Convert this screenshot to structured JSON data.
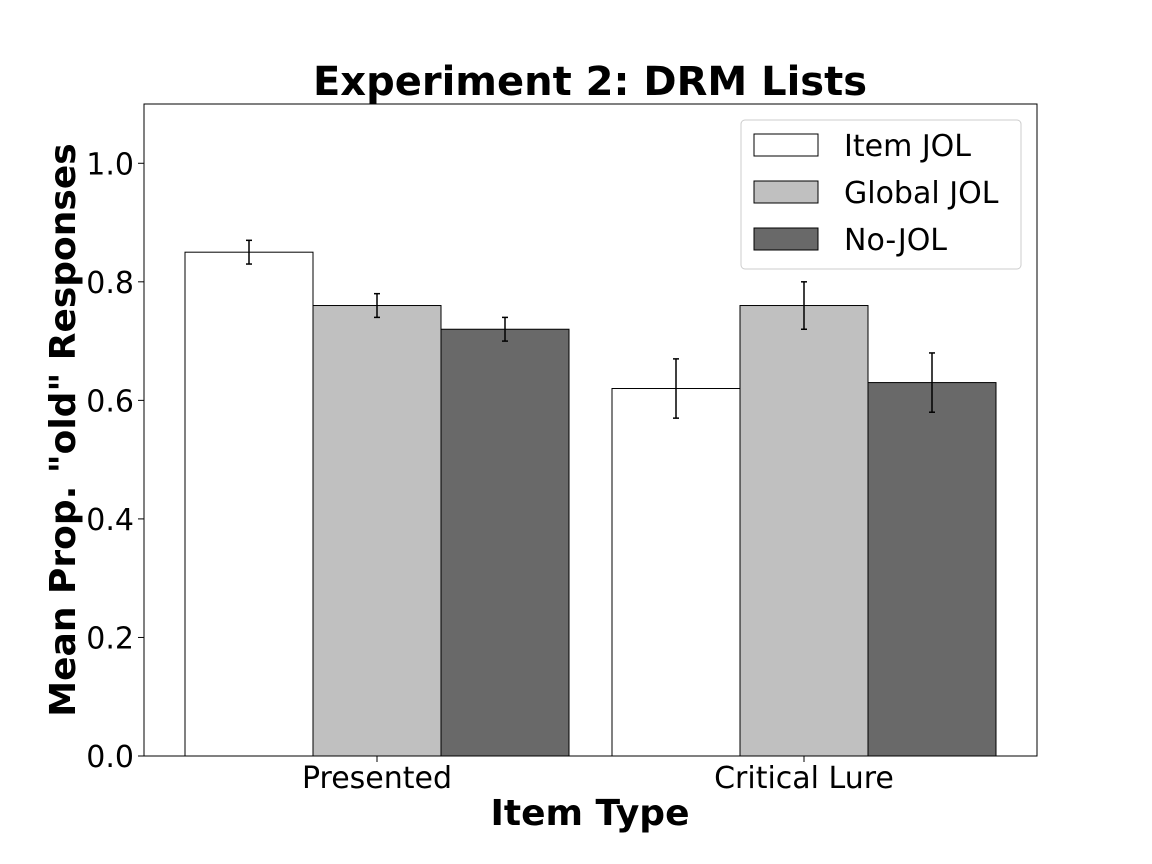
{
  "chart_data": {
    "type": "bar",
    "title": "Experiment 2: DRM Lists",
    "xlabel": "Item Type",
    "ylabel": "Mean Prop. \"old\" Responses",
    "categories": [
      "Presented",
      "Critical Lure"
    ],
    "ylim": [
      0,
      1.1
    ],
    "yticks": [
      "0.0",
      "0.2",
      "0.4",
      "0.6",
      "0.8",
      "1.0"
    ],
    "grid": false,
    "legend_position": "top-right",
    "series": [
      {
        "name": "Item JOL",
        "color": "#ffffff",
        "values": [
          0.85,
          0.62
        ],
        "errors": [
          0.02,
          0.05
        ]
      },
      {
        "name": "Global JOL",
        "color": "#c0c0c0",
        "values": [
          0.76,
          0.76
        ],
        "errors": [
          0.02,
          0.04
        ]
      },
      {
        "name": "No-JOL",
        "color": "#696969",
        "values": [
          0.72,
          0.63
        ],
        "errors": [
          0.02,
          0.05
        ]
      }
    ]
  }
}
